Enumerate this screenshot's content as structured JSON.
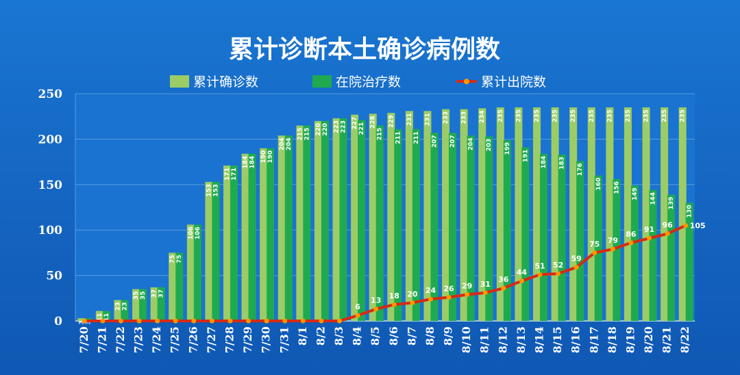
{
  "chart_data": {
    "type": "bar",
    "title": "累计诊断本土确诊病例数",
    "categories": [
      "7/20",
      "7/21",
      "7/22",
      "7/23",
      "7/24",
      "7/25",
      "7/26",
      "7/27",
      "7/28",
      "7/29",
      "7/30",
      "7/31",
      "8/1",
      "8/2",
      "8/3",
      "8/4",
      "8/5",
      "8/6",
      "8/7",
      "8/8",
      "8/9",
      "8/10",
      "8/11",
      "8/12",
      "8/13",
      "8/14",
      "8/15",
      "8/16",
      "8/17",
      "8/18",
      "8/19",
      "8/20",
      "8/21",
      "8/22"
    ],
    "series": [
      {
        "name": "累计确诊数",
        "type": "bar",
        "color": "#9ccc65",
        "values": [
          3,
          11,
          23,
          35,
          37,
          75,
          106,
          153,
          171,
          184,
          190,
          204,
          215,
          220,
          223,
          227,
          228,
          229,
          231,
          231,
          233,
          233,
          234,
          235,
          235,
          235,
          235,
          235,
          235,
          235,
          235,
          235,
          235,
          235
        ],
        "labels": [
          "3",
          "11",
          "23",
          "35",
          "37",
          "75",
          "106",
          "153",
          "171",
          "184",
          "190",
          "204",
          "215",
          "220",
          "223",
          "227",
          "228",
          "229",
          "231",
          "231",
          "233",
          "233",
          "234",
          "235",
          "235",
          "235",
          "235",
          "235",
          "235",
          "235",
          "235",
          "235",
          "235",
          "235"
        ]
      },
      {
        "name": "在院治疗数",
        "type": "bar",
        "color": "#1faa50",
        "values": [
          3,
          11,
          23,
          35,
          37,
          75,
          106,
          153,
          171,
          184,
          190,
          204,
          215,
          220,
          223,
          221,
          215,
          211,
          211,
          207,
          207,
          204,
          203,
          199,
          191,
          184,
          183,
          176,
          160,
          156,
          149,
          144,
          139,
          130
        ],
        "labels": [
          "3",
          "11",
          "23",
          "35",
          "37",
          "75",
          "106",
          "153",
          "171",
          "184",
          "190",
          "204",
          "215",
          "220",
          "223",
          "221",
          "215",
          "211",
          "211",
          "207",
          "207",
          "204",
          "203",
          "199",
          "191",
          "184",
          "183",
          "176",
          "160",
          "156",
          "149",
          "144",
          "139",
          "130"
        ]
      },
      {
        "name": "累计出院数",
        "type": "line",
        "color": "#d62a14",
        "marker_color": "#ff9800",
        "values": [
          0,
          0,
          0,
          0,
          0,
          0,
          0,
          0,
          0,
          0,
          0,
          0,
          0,
          0,
          0,
          6,
          13,
          18,
          20,
          24,
          26,
          29,
          31,
          36,
          44,
          51,
          52,
          59,
          75,
          79,
          86,
          91,
          96,
          105
        ],
        "labels": [
          "",
          "",
          "",
          "",
          "",
          "",
          "",
          "",
          "",
          "",
          "",
          "",
          "",
          "",
          "",
          "6",
          "13",
          "18",
          "20",
          "24",
          "26",
          "29",
          "31",
          "36",
          "44",
          "51",
          "52",
          "59",
          "75",
          "79",
          "86",
          "91",
          "96",
          "105"
        ]
      }
    ],
    "yticks": [
      "0",
      "50",
      "100",
      "150",
      "200",
      "250"
    ],
    "ylim": [
      0,
      250
    ],
    "grid": true,
    "legend_position": "top-center"
  }
}
